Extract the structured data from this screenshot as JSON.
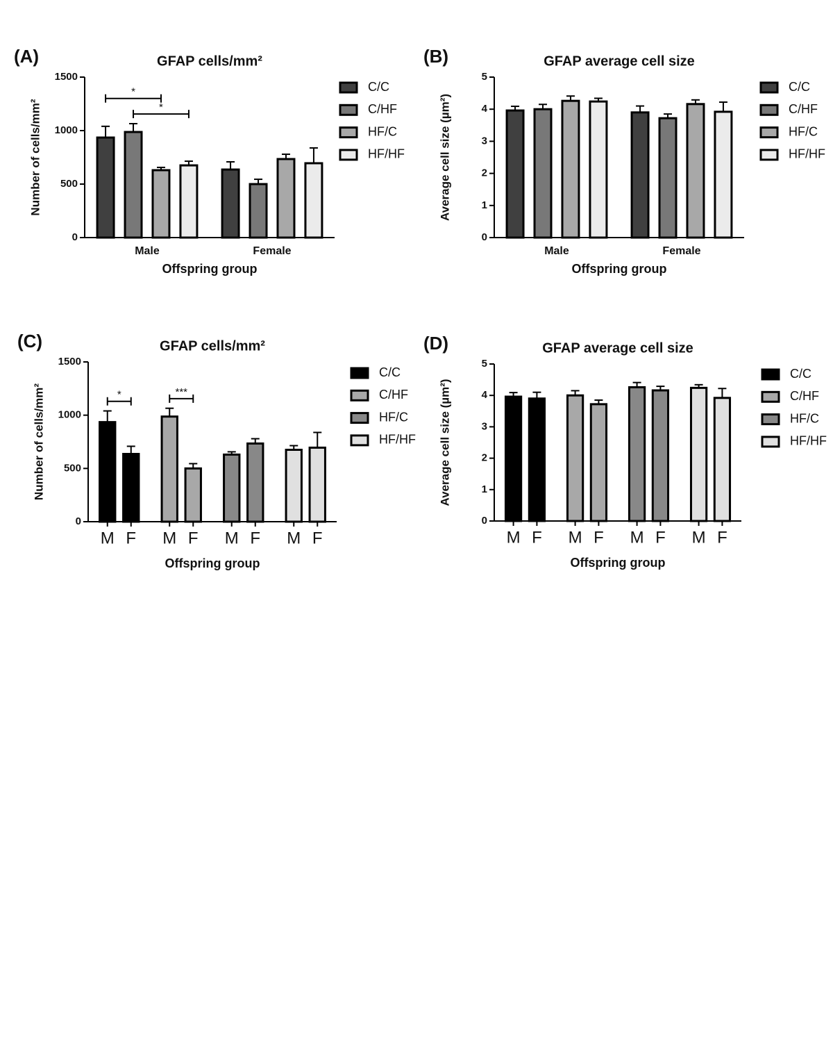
{
  "chart_data": [
    {
      "panel": "(A)",
      "type": "bar",
      "title": "GFAP cells/mm²",
      "ylabel": "Number of cells/mm²",
      "xlabel": "Offspring group",
      "categories": [
        "Male",
        "Female"
      ],
      "ylim": [
        0,
        1500
      ],
      "yticks": [
        0,
        500,
        1000,
        1500
      ],
      "series": [
        {
          "name": "C/C",
          "color": "#404040",
          "values": [
            935,
            636
          ],
          "errors": [
            105,
            72
          ]
        },
        {
          "name": "C/HF",
          "color": "#787878",
          "values": [
            987,
            500
          ],
          "errors": [
            78,
            45
          ]
        },
        {
          "name": "HF/C",
          "color": "#a8a8a8",
          "values": [
            630,
            734
          ],
          "errors": [
            26,
            45
          ]
        },
        {
          "name": "HF/HF",
          "color": "#ebebeb",
          "values": [
            675,
            695
          ],
          "errors": [
            39,
            143
          ]
        }
      ],
      "annotations": [
        {
          "text": "*",
          "from": {
            "series": 0,
            "category": 0
          },
          "to": {
            "series": 2,
            "category": 0
          }
        },
        {
          "text": "*",
          "from": {
            "series": 1,
            "category": 0
          },
          "to": {
            "series": 3,
            "category": 0
          }
        }
      ]
    },
    {
      "panel": "(B)",
      "type": "bar",
      "title": "GFAP average cell size",
      "ylabel": "Average cell size (µm²)",
      "xlabel": "Offspring group",
      "categories": [
        "Male",
        "Female"
      ],
      "ylim": [
        0,
        5
      ],
      "yticks": [
        0,
        1,
        2,
        3,
        4,
        5
      ],
      "series": [
        {
          "name": "C/C",
          "color": "#404040",
          "values": [
            3.96,
            3.9
          ],
          "errors": [
            0.13,
            0.2
          ]
        },
        {
          "name": "C/HF",
          "color": "#787878",
          "values": [
            4.0,
            3.72
          ],
          "errors": [
            0.15,
            0.13
          ]
        },
        {
          "name": "HF/C",
          "color": "#a8a8a8",
          "values": [
            4.26,
            4.16
          ],
          "errors": [
            0.15,
            0.13
          ]
        },
        {
          "name": "HF/HF",
          "color": "#ebebeb",
          "values": [
            4.24,
            3.92
          ],
          "errors": [
            0.1,
            0.3
          ]
        }
      ]
    },
    {
      "panel": "(C)",
      "type": "bar",
      "group_by": "series",
      "title": "GFAP cells/mm²",
      "ylabel": "Number of cells/mm²",
      "xlabel": "Offspring group",
      "categories": [
        "M",
        "F"
      ],
      "ylim": [
        0,
        1500
      ],
      "yticks": [
        0,
        500,
        1000,
        1500
      ],
      "series": [
        {
          "name": "C/C",
          "color": "#000000",
          "values": [
            935,
            636
          ],
          "errors": [
            105,
            72
          ]
        },
        {
          "name": "C/HF",
          "color": "#a8a8a8",
          "values": [
            987,
            500
          ],
          "errors": [
            78,
            45
          ]
        },
        {
          "name": "HF/C",
          "color": "#888888",
          "values": [
            630,
            734
          ],
          "errors": [
            26,
            45
          ]
        },
        {
          "name": "HF/HF",
          "color": "#e0e0e0",
          "values": [
            675,
            695
          ],
          "errors": [
            39,
            143
          ]
        }
      ],
      "annotations": [
        {
          "text": "*",
          "from": {
            "series": 0,
            "category": 0
          },
          "to": {
            "series": 0,
            "category": 1
          }
        },
        {
          "text": "***",
          "from": {
            "series": 1,
            "category": 0
          },
          "to": {
            "series": 1,
            "category": 1
          }
        }
      ]
    },
    {
      "panel": "(D)",
      "type": "bar",
      "group_by": "series",
      "title": "GFAP average cell size",
      "ylabel": "Average cell size (µm²)",
      "xlabel": "Offspring group",
      "categories": [
        "M",
        "F"
      ],
      "ylim": [
        0,
        5
      ],
      "yticks": [
        0,
        1,
        2,
        3,
        4,
        5
      ],
      "series": [
        {
          "name": "C/C",
          "color": "#000000",
          "values": [
            3.96,
            3.9
          ],
          "errors": [
            0.13,
            0.2
          ]
        },
        {
          "name": "C/HF",
          "color": "#a8a8a8",
          "values": [
            4.0,
            3.72
          ],
          "errors": [
            0.15,
            0.13
          ]
        },
        {
          "name": "HF/C",
          "color": "#888888",
          "values": [
            4.26,
            4.16
          ],
          "errors": [
            0.15,
            0.13
          ]
        },
        {
          "name": "HF/HF",
          "color": "#e0e0e0",
          "values": [
            4.24,
            3.92
          ],
          "errors": [
            0.1,
            0.3
          ]
        }
      ]
    }
  ]
}
